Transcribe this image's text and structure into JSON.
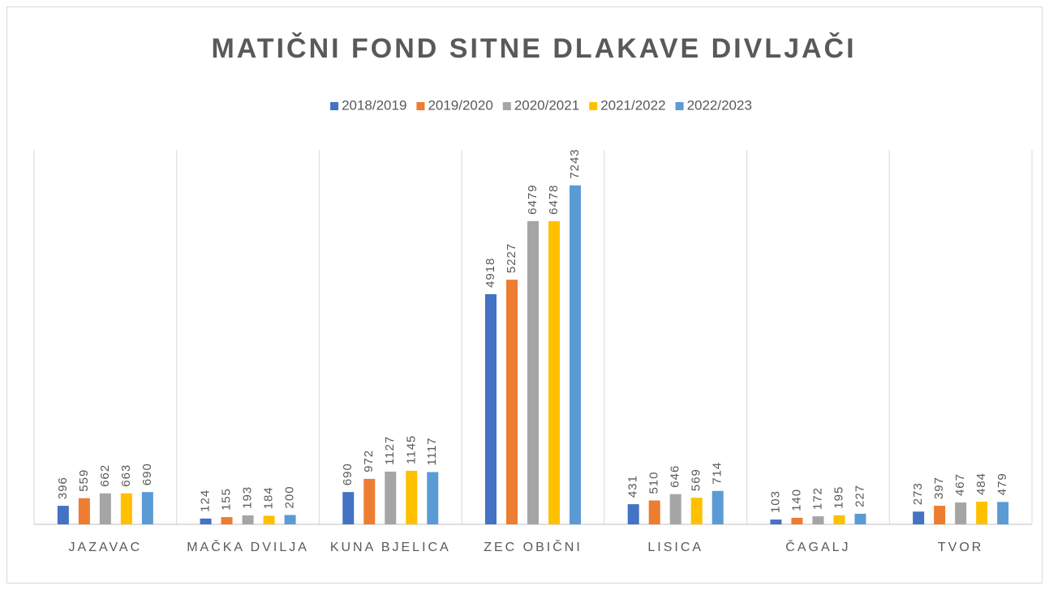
{
  "chart_data": {
    "type": "bar",
    "title": "MATIČNI FOND SITNE DLAKAVE DIVLJAČI",
    "categories": [
      "JAZAVAC",
      "MAČKA DVILJA",
      "KUNA BJELICA",
      "ZEC OBIČNI",
      "LISICA",
      "ČAGALJ",
      "TVOR"
    ],
    "series": [
      {
        "name": "2018/2019",
        "color": "#4472c4",
        "values": [
          396,
          124,
          690,
          4918,
          431,
          103,
          273
        ]
      },
      {
        "name": "2019/2020",
        "color": "#ed7d31",
        "values": [
          559,
          155,
          972,
          5227,
          510,
          140,
          397
        ]
      },
      {
        "name": "2020/2021",
        "color": "#a5a5a5",
        "values": [
          662,
          193,
          1127,
          6479,
          646,
          172,
          467
        ]
      },
      {
        "name": "2021/2022",
        "color": "#ffc000",
        "values": [
          663,
          184,
          1145,
          6478,
          569,
          195,
          484
        ]
      },
      {
        "name": "2022/2023",
        "color": "#5b9bd5",
        "values": [
          690,
          200,
          1117,
          7243,
          714,
          227,
          479
        ]
      }
    ],
    "ylim": [
      0,
      8000
    ],
    "legend": "top"
  }
}
